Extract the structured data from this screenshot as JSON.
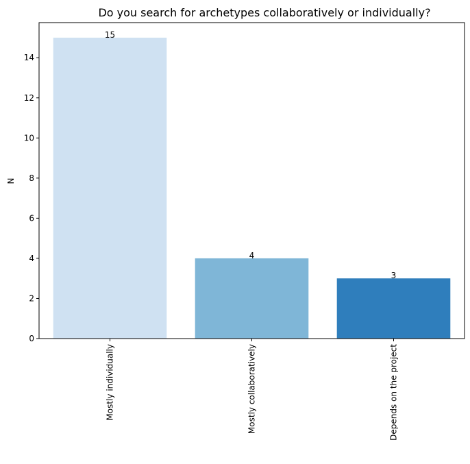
{
  "chart_data": {
    "type": "bar",
    "title": "Do you search for archetypes collaboratively or individually?",
    "xlabel": "",
    "ylabel": "N",
    "categories": [
      "Mostly individually",
      "Mostly collaboratively",
      "Depends on the project"
    ],
    "values": [
      15,
      4,
      3
    ],
    "data_labels": [
      "15",
      "4",
      "3"
    ],
    "colors": [
      "#cfe1f2",
      "#7fb6d7",
      "#2f7ebc"
    ],
    "ylim": [
      0,
      15.75
    ],
    "yticks": [
      0,
      2,
      4,
      6,
      8,
      10,
      12,
      14
    ],
    "ytick_labels": [
      "0",
      "2",
      "4",
      "6",
      "8",
      "10",
      "12",
      "14"
    ],
    "grid": false,
    "legend": "none"
  }
}
